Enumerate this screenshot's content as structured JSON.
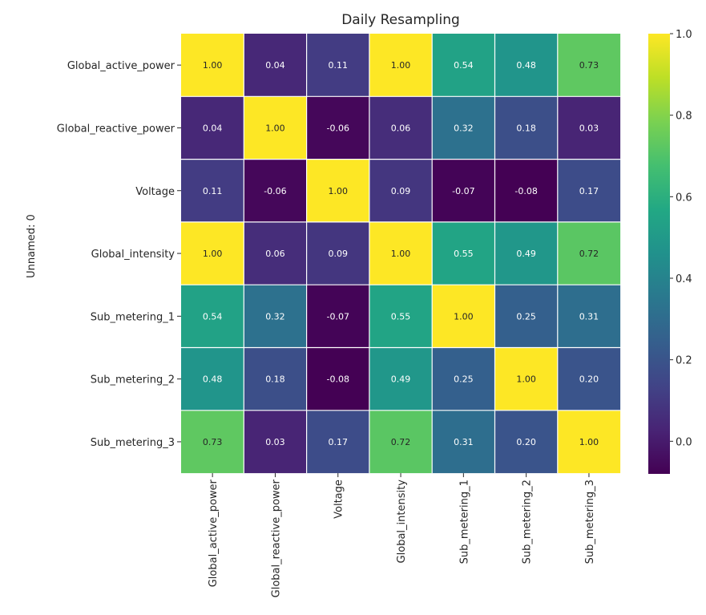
{
  "chart_data": {
    "type": "heatmap",
    "title": "Daily Resampling",
    "xlabel": "",
    "ylabel": "Unnamed: 0",
    "colormap": "viridis",
    "vmin": -0.08,
    "vmax": 1.0,
    "colorbar_ticks": [
      "0.0",
      "0.2",
      "0.4",
      "0.6",
      "0.8",
      "1.0"
    ],
    "colorbar_tick_values": [
      0.0,
      0.2,
      0.4,
      0.6,
      0.8,
      1.0
    ],
    "rows": [
      "Global_active_power",
      "Global_reactive_power",
      "Voltage",
      "Global_intensity",
      "Sub_metering_1",
      "Sub_metering_2",
      "Sub_metering_3"
    ],
    "columns": [
      "Global_active_power",
      "Global_reactive_power",
      "Voltage",
      "Global_intensity",
      "Sub_metering_1",
      "Sub_metering_2",
      "Sub_metering_3"
    ],
    "values": [
      [
        1.0,
        0.04,
        0.11,
        1.0,
        0.54,
        0.48,
        0.73
      ],
      [
        0.04,
        1.0,
        -0.06,
        0.06,
        0.32,
        0.18,
        0.03
      ],
      [
        0.11,
        -0.06,
        1.0,
        0.09,
        -0.07,
        -0.08,
        0.17
      ],
      [
        1.0,
        0.06,
        0.09,
        1.0,
        0.55,
        0.49,
        0.72
      ],
      [
        0.54,
        0.32,
        -0.07,
        0.55,
        1.0,
        0.25,
        0.31
      ],
      [
        0.48,
        0.18,
        -0.08,
        0.49,
        0.25,
        1.0,
        0.2
      ],
      [
        0.73,
        0.03,
        0.17,
        0.72,
        0.31,
        0.2,
        1.0
      ]
    ],
    "annotations": [
      [
        "1.00",
        "0.04",
        "0.11",
        "1.00",
        "0.54",
        "0.48",
        "0.73"
      ],
      [
        "0.04",
        "1.00",
        "-0.06",
        "0.06",
        "0.32",
        "0.18",
        "0.03"
      ],
      [
        "0.11",
        "-0.06",
        "1.00",
        "0.09",
        "-0.07",
        "-0.08",
        "0.17"
      ],
      [
        "1.00",
        "0.06",
        "0.09",
        "1.00",
        "0.55",
        "0.49",
        "0.72"
      ],
      [
        "0.54",
        "0.32",
        "-0.07",
        "0.55",
        "1.00",
        "0.25",
        "0.31"
      ],
      [
        "0.48",
        "0.18",
        "-0.08",
        "0.49",
        "0.25",
        "1.00",
        "0.20"
      ],
      [
        "0.73",
        "0.03",
        "0.17",
        "0.72",
        "0.31",
        "0.20",
        "1.00"
      ]
    ],
    "grid_line_color": "#ffffff",
    "annotation_color_dark": "#262626",
    "annotation_color_light": "#ffffff"
  }
}
